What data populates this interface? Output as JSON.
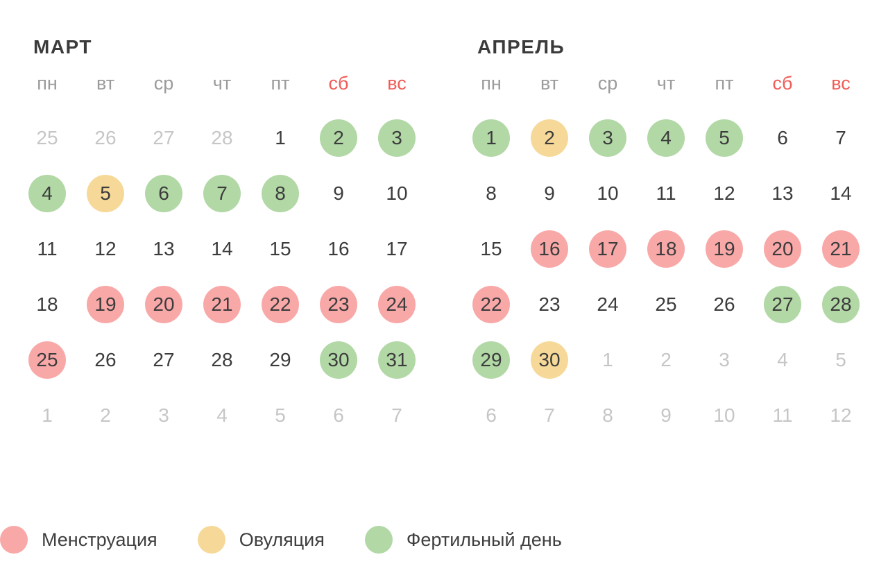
{
  "weekdays": [
    {
      "label": "пн",
      "weekend": false
    },
    {
      "label": "вт",
      "weekend": false
    },
    {
      "label": "ср",
      "weekend": false
    },
    {
      "label": "чт",
      "weekend": false
    },
    {
      "label": "пт",
      "weekend": false
    },
    {
      "label": "сб",
      "weekend": true
    },
    {
      "label": "вс",
      "weekend": true
    }
  ],
  "months": [
    {
      "name": "МАРТ",
      "weeks": [
        [
          {
            "day": "25",
            "type": "outside"
          },
          {
            "day": "26",
            "type": "outside"
          },
          {
            "day": "27",
            "type": "outside"
          },
          {
            "day": "28",
            "type": "outside"
          },
          {
            "day": "1",
            "type": "normal"
          },
          {
            "day": "2",
            "type": "fertile"
          },
          {
            "day": "3",
            "type": "fertile"
          }
        ],
        [
          {
            "day": "4",
            "type": "fertile"
          },
          {
            "day": "5",
            "type": "ovulation"
          },
          {
            "day": "6",
            "type": "fertile"
          },
          {
            "day": "7",
            "type": "fertile"
          },
          {
            "day": "8",
            "type": "fertile"
          },
          {
            "day": "9",
            "type": "normal"
          },
          {
            "day": "10",
            "type": "normal"
          }
        ],
        [
          {
            "day": "11",
            "type": "normal"
          },
          {
            "day": "12",
            "type": "normal"
          },
          {
            "day": "13",
            "type": "normal"
          },
          {
            "day": "14",
            "type": "normal"
          },
          {
            "day": "15",
            "type": "normal"
          },
          {
            "day": "16",
            "type": "normal"
          },
          {
            "day": "17",
            "type": "normal"
          }
        ],
        [
          {
            "day": "18",
            "type": "normal"
          },
          {
            "day": "19",
            "type": "menstruation"
          },
          {
            "day": "20",
            "type": "menstruation"
          },
          {
            "day": "21",
            "type": "menstruation"
          },
          {
            "day": "22",
            "type": "menstruation"
          },
          {
            "day": "23",
            "type": "menstruation"
          },
          {
            "day": "24",
            "type": "menstruation"
          }
        ],
        [
          {
            "day": "25",
            "type": "menstruation"
          },
          {
            "day": "26",
            "type": "normal"
          },
          {
            "day": "27",
            "type": "normal"
          },
          {
            "day": "28",
            "type": "normal"
          },
          {
            "day": "29",
            "type": "normal"
          },
          {
            "day": "30",
            "type": "fertile"
          },
          {
            "day": "31",
            "type": "fertile"
          }
        ],
        [
          {
            "day": "1",
            "type": "outside"
          },
          {
            "day": "2",
            "type": "outside"
          },
          {
            "day": "3",
            "type": "outside"
          },
          {
            "day": "4",
            "type": "outside"
          },
          {
            "day": "5",
            "type": "outside"
          },
          {
            "day": "6",
            "type": "outside"
          },
          {
            "day": "7",
            "type": "outside"
          }
        ]
      ]
    },
    {
      "name": "АПРЕЛЬ",
      "weeks": [
        [
          {
            "day": "1",
            "type": "fertile"
          },
          {
            "day": "2",
            "type": "ovulation"
          },
          {
            "day": "3",
            "type": "fertile"
          },
          {
            "day": "4",
            "type": "fertile"
          },
          {
            "day": "5",
            "type": "fertile"
          },
          {
            "day": "6",
            "type": "normal"
          },
          {
            "day": "7",
            "type": "normal"
          }
        ],
        [
          {
            "day": "8",
            "type": "normal"
          },
          {
            "day": "9",
            "type": "normal"
          },
          {
            "day": "10",
            "type": "normal"
          },
          {
            "day": "11",
            "type": "normal"
          },
          {
            "day": "12",
            "type": "normal"
          },
          {
            "day": "13",
            "type": "normal"
          },
          {
            "day": "14",
            "type": "normal"
          }
        ],
        [
          {
            "day": "15",
            "type": "normal"
          },
          {
            "day": "16",
            "type": "menstruation"
          },
          {
            "day": "17",
            "type": "menstruation"
          },
          {
            "day": "18",
            "type": "menstruation"
          },
          {
            "day": "19",
            "type": "menstruation"
          },
          {
            "day": "20",
            "type": "menstruation"
          },
          {
            "day": "21",
            "type": "menstruation"
          }
        ],
        [
          {
            "day": "22",
            "type": "menstruation"
          },
          {
            "day": "23",
            "type": "normal"
          },
          {
            "day": "24",
            "type": "normal"
          },
          {
            "day": "25",
            "type": "normal"
          },
          {
            "day": "26",
            "type": "normal"
          },
          {
            "day": "27",
            "type": "fertile"
          },
          {
            "day": "28",
            "type": "fertile"
          }
        ],
        [
          {
            "day": "29",
            "type": "fertile"
          },
          {
            "day": "30",
            "type": "ovulation"
          },
          {
            "day": "1",
            "type": "outside"
          },
          {
            "day": "2",
            "type": "outside"
          },
          {
            "day": "3",
            "type": "outside"
          },
          {
            "day": "4",
            "type": "outside"
          },
          {
            "day": "5",
            "type": "outside"
          }
        ],
        [
          {
            "day": "6",
            "type": "outside"
          },
          {
            "day": "7",
            "type": "outside"
          },
          {
            "day": "8",
            "type": "outside"
          },
          {
            "day": "9",
            "type": "outside"
          },
          {
            "day": "10",
            "type": "outside"
          },
          {
            "day": "11",
            "type": "outside"
          },
          {
            "day": "12",
            "type": "outside"
          }
        ]
      ]
    }
  ],
  "legend": [
    {
      "label": "Менструация",
      "type": "menstruation",
      "color": "#f9a8a8"
    },
    {
      "label": "Овуляция",
      "type": "ovulation",
      "color": "#f6d998"
    },
    {
      "label": "Фертильный день",
      "type": "fertile",
      "color": "#b2d8a6"
    }
  ],
  "colors": {
    "menstruation": "#f9a8a8",
    "ovulation": "#f6d998",
    "fertile": "#b2d8a6",
    "weekend_header": "#f05c56",
    "outside_day": "#c6c6c6",
    "day_text": "#3c3c3c",
    "weekday_header": "#9b9b9b",
    "title_text": "#3b3b3b",
    "background": "#ffffff"
  }
}
